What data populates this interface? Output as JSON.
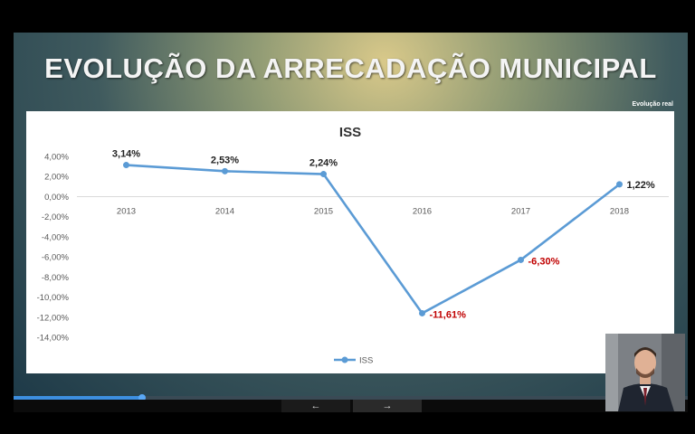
{
  "slide": {
    "title": "EVOLUÇÃO DA ARRECADAÇÃO MUNICIPAL",
    "corner_note": "Evolução real"
  },
  "navigation": {
    "prev_icon": "arrow-left-icon",
    "prev_glyph": "←",
    "next_icon": "arrow-right-icon",
    "next_glyph": "→",
    "progress": 0.19
  },
  "colors": {
    "series": "#5b9bd5",
    "positive_label": "#222222",
    "negative_label": "#c00000",
    "title_text": "#f4f4f4"
  },
  "chart_data": {
    "type": "line",
    "title": "ISS",
    "categories": [
      "2013",
      "2014",
      "2015",
      "2016",
      "2017",
      "2018"
    ],
    "series": [
      {
        "name": "ISS",
        "values": [
          3.14,
          2.53,
          2.24,
          -11.61,
          -6.3,
          1.22
        ],
        "labels": [
          "3,14%",
          "2,53%",
          "2,24%",
          "-11,61%",
          "-6,30%",
          "1,22%"
        ]
      }
    ],
    "y_ticks": [
      4,
      2,
      0,
      -2,
      -4,
      -6,
      -8,
      -10,
      -12,
      -14
    ],
    "y_tick_labels": [
      "4,00%",
      "2,00%",
      "0,00%",
      "-2,00%",
      "-4,00%",
      "-6,00%",
      "-8,00%",
      "-10,00%",
      "-12,00%",
      "-14,00%"
    ],
    "ylim": [
      -14,
      4
    ],
    "grid": false,
    "legend_position": "bottom"
  }
}
